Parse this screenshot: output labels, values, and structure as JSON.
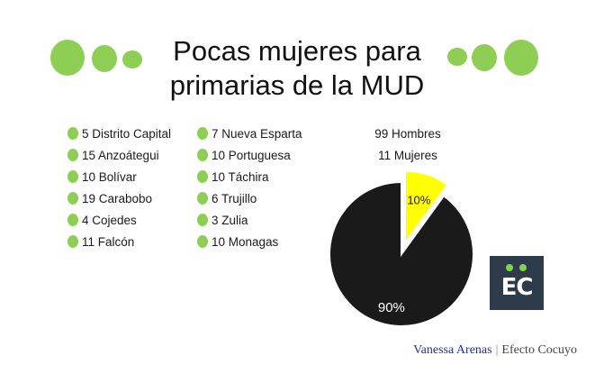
{
  "header": {
    "title_line1": "Pocas mujeres para",
    "title_line2": "primarias de la MUD"
  },
  "legend": {
    "column1": [
      "5 Distrito Capital",
      "15 Anzoátegui",
      "10 Bolívar",
      "19 Carabobo",
      "4 Cojedes",
      "11 Falcón"
    ],
    "column2": [
      "7 Nueva Esparta",
      "10 Portuguesa",
      "10 Táchira",
      "6 Trujillo",
      "3 Zulia",
      "10 Monagas"
    ]
  },
  "summary": {
    "men": "99 Hombres",
    "women": "11 Mujeres"
  },
  "chart_data": {
    "type": "pie",
    "categories": [
      "Mujeres",
      "Hombres"
    ],
    "values": [
      10,
      90
    ],
    "labels": [
      "10%",
      "90%"
    ],
    "colors": [
      "#ffff00",
      "#1a1a1a"
    ]
  },
  "logo": {
    "text": "EC"
  },
  "credit": {
    "author": "Vanessa Arenas",
    "separator": "|",
    "outlet": "Efecto Cocuyo"
  },
  "colors": {
    "accent_green": "#8fce55",
    "logo_bg": "#2e3b4a",
    "author_blue": "#1f2fb0"
  }
}
